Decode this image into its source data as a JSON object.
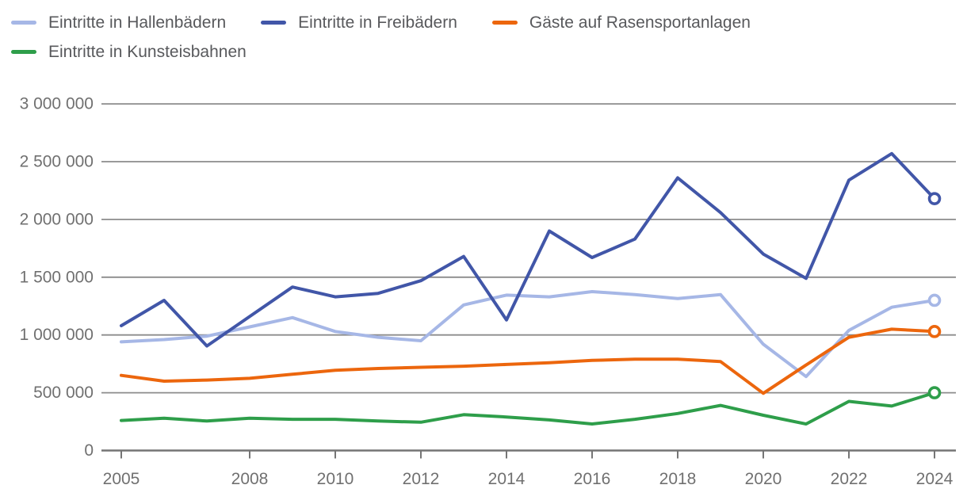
{
  "chart_data": {
    "type": "line",
    "title": "",
    "xlabel": "",
    "ylabel": "",
    "x": [
      2005,
      2006,
      2007,
      2008,
      2009,
      2010,
      2011,
      2012,
      2013,
      2014,
      2015,
      2016,
      2017,
      2018,
      2019,
      2020,
      2021,
      2022,
      2023,
      2024
    ],
    "x_ticks": [
      {
        "year": 2005,
        "label": "2005"
      },
      {
        "year": 2008,
        "label": "2008"
      },
      {
        "year": 2010,
        "label": "2010"
      },
      {
        "year": 2012,
        "label": "2012"
      },
      {
        "year": 2014,
        "label": "2014"
      },
      {
        "year": 2016,
        "label": "2016"
      },
      {
        "year": 2018,
        "label": "2018"
      },
      {
        "year": 2020,
        "label": "2020"
      },
      {
        "year": 2022,
        "label": "2022"
      },
      {
        "year": 2024,
        "label": "2024"
      }
    ],
    "y_ticks": [
      {
        "value": 0,
        "label": "0"
      },
      {
        "value": 500000,
        "label": "500 000"
      },
      {
        "value": 1000000,
        "label": "1 000 000"
      },
      {
        "value": 1500000,
        "label": "1 500 000"
      },
      {
        "value": 2000000,
        "label": "2 000 000"
      },
      {
        "value": 2500000,
        "label": "2 500 000"
      },
      {
        "value": 3000000,
        "label": "3 000 000"
      }
    ],
    "ylim": [
      0,
      3000000
    ],
    "grid": true,
    "legend_position": "top-left",
    "end_marker": "open-circle",
    "series": [
      {
        "name": "Eintritte in Hallenbädern",
        "color": "#a6b7e6",
        "values": [
          940000,
          960000,
          990000,
          1070000,
          1150000,
          1030000,
          980000,
          950000,
          1260000,
          1345000,
          1330000,
          1375000,
          1350000,
          1315000,
          1350000,
          920000,
          640000,
          1040000,
          1240000,
          1300000
        ]
      },
      {
        "name": "Eintritte in Freibädern",
        "color": "#4156a8",
        "values": [
          1080000,
          1300000,
          905000,
          1160000,
          1415000,
          1330000,
          1360000,
          1470000,
          1680000,
          1130000,
          1900000,
          1670000,
          1830000,
          2360000,
          2060000,
          1700000,
          1490000,
          2340000,
          2570000,
          2180000
        ]
      },
      {
        "name": "Gäste auf Rasensportanlagen",
        "color": "#ec660d",
        "values": [
          650000,
          600000,
          610000,
          625000,
          660000,
          695000,
          710000,
          720000,
          730000,
          745000,
          760000,
          780000,
          790000,
          790000,
          770000,
          495000,
          740000,
          980000,
          1050000,
          1030000
        ]
      },
      {
        "name": "Eintritte in Kunsteisbahnen",
        "color": "#2e9e4a",
        "values": [
          260000,
          280000,
          255000,
          280000,
          270000,
          270000,
          255000,
          245000,
          310000,
          290000,
          265000,
          230000,
          270000,
          320000,
          390000,
          305000,
          230000,
          425000,
          385000,
          500000
        ]
      }
    ],
    "legend_rows": [
      [
        0,
        1,
        2
      ],
      [
        3
      ]
    ]
  },
  "colors": {
    "background": "#ffffff",
    "gridline": "#8c8c8c",
    "axis": "#757575",
    "axis_text": "#707070",
    "legend_text": "#58595c",
    "marker_fill": "#ffffff"
  }
}
